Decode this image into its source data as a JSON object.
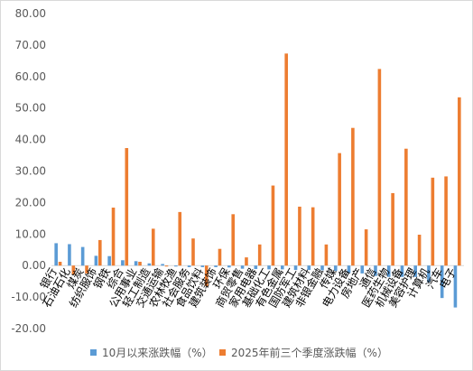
{
  "chart_data": {
    "type": "bar",
    "title": "",
    "xlabel": "",
    "ylabel": "",
    "ylim": [
      -20,
      80
    ],
    "yticks": [
      "80.00",
      "70.00",
      "60.00",
      "50.00",
      "40.00",
      "30.00",
      "20.00",
      "10.00",
      "0.00",
      "-10.00",
      "-20.00"
    ],
    "ytick_values": [
      80,
      70,
      60,
      50,
      40,
      30,
      20,
      10,
      0,
      -10,
      -20
    ],
    "grid": false,
    "legend_position": "bottom",
    "categories": [
      "银行",
      "石油石化",
      "煤炭",
      "纺织服饰",
      "钢铁",
      "综合",
      "公用事业",
      "轻工制造",
      "交通运输",
      "农林牧渔",
      "社会服务",
      "食品饮料",
      "建筑装饰",
      "环保",
      "商贸零售",
      "家用电器",
      "基础化工",
      "有色金属",
      "国防军工",
      "建筑材料",
      "非银金融",
      "传媒",
      "电力设备",
      "房地产",
      "通信",
      "医药生物",
      "机械设备",
      "美容护理",
      "计算机",
      "汽车",
      "电子"
    ],
    "series": [
      {
        "name": "10月以来涨跌幅（%）",
        "color": "#5b9bd5",
        "values": [
          7.1,
          6.8,
          5.9,
          3.1,
          3.0,
          1.7,
          1.4,
          0.7,
          0.5,
          -0.3,
          -0.5,
          -0.5,
          -0.5,
          -0.6,
          -1.0,
          -1.1,
          -1.2,
          -1.2,
          -1.4,
          -1.4,
          -1.5,
          -1.7,
          -2.4,
          -2.5,
          -3.3,
          -3.6,
          -3.6,
          -3.6,
          -5.3,
          -10.3,
          -13.3
        ]
      },
      {
        "name": "2025年前三个季度涨跌幅（%）",
        "color": "#ed7d31",
        "values": [
          1.2,
          -2.9,
          -2.5,
          8.1,
          18.4,
          37.3,
          1.2,
          11.7,
          -0.3,
          17.0,
          8.6,
          -6.5,
          5.3,
          16.3,
          2.6,
          6.7,
          25.4,
          67.3,
          18.7,
          18.5,
          6.7,
          35.7,
          43.7,
          11.5,
          62.4,
          23.0,
          37.1,
          9.8,
          27.9,
          28.3,
          53.4
        ]
      }
    ]
  }
}
